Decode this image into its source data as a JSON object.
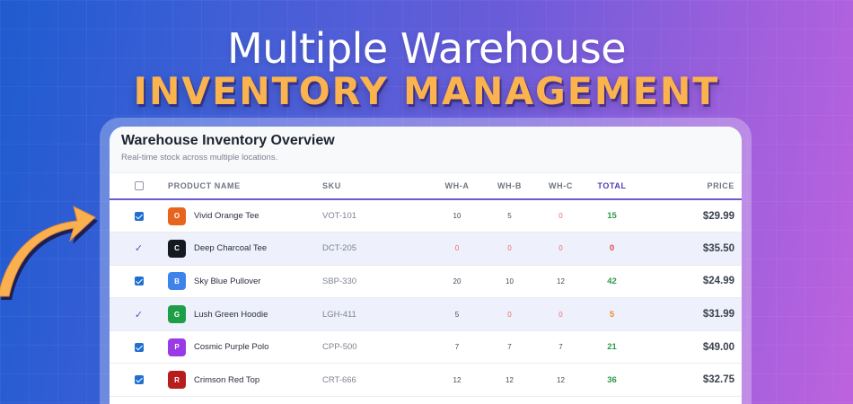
{
  "hero": {
    "title": "Multiple Warehouse",
    "subtitle": "INVENTORY MANAGEMENT"
  },
  "card": {
    "title": "Warehouse Inventory Overview",
    "subtitle": "Real-time stock across multiple locations."
  },
  "table": {
    "columns": {
      "product": "PRODUCT NAME",
      "sku": "SKU",
      "wha": "WH-A",
      "whb": "WH-B",
      "whc": "WH-C",
      "total": "TOTAL",
      "price": "PRICE"
    },
    "rows": [
      {
        "selected": "checkbox",
        "initial": "O",
        "color": "#e8641c",
        "name": "Vivid Orange Tee",
        "sku": "VOT-101",
        "wha": "10",
        "whb": "5",
        "whc": "0",
        "total": "15",
        "price": "$29.99"
      },
      {
        "selected": "tick",
        "initial": "C",
        "color": "#151922",
        "name": "Deep Charcoal Tee",
        "sku": "DCT-205",
        "wha": "0",
        "whb": "0",
        "whc": "0",
        "total": "0",
        "price": "$35.50"
      },
      {
        "selected": "checkbox",
        "initial": "B",
        "color": "#3d83ea",
        "name": "Sky Blue Pullover",
        "sku": "SBP-330",
        "wha": "20",
        "whb": "10",
        "whc": "12",
        "total": "42",
        "price": "$24.99"
      },
      {
        "selected": "tick",
        "initial": "G",
        "color": "#1e9e48",
        "name": "Lush Green Hoodie",
        "sku": "LGH-411",
        "wha": "5",
        "whb": "0",
        "whc": "0",
        "total": "5",
        "price": "$31.99"
      },
      {
        "selected": "checkbox",
        "initial": "P",
        "color": "#9a3ae6",
        "name": "Cosmic Purple Polo",
        "sku": "CPP-500",
        "wha": "7",
        "whb": "7",
        "whc": "7",
        "total": "21",
        "price": "$49.00"
      },
      {
        "selected": "checkbox",
        "initial": "R",
        "color": "#b81d1d",
        "name": "Crimson Red Top",
        "sku": "CRT-666",
        "wha": "12",
        "whb": "12",
        "whc": "12",
        "total": "36",
        "price": "$32.75"
      }
    ]
  },
  "colors": {
    "accent": "#6a5bd0",
    "checkbox": "#1f6fd1",
    "stock_ok": "#2f9a4a",
    "stock_zero": "#e04a4a",
    "stock_low": "#f08a30",
    "hero_highlight": "#fbb34e"
  }
}
